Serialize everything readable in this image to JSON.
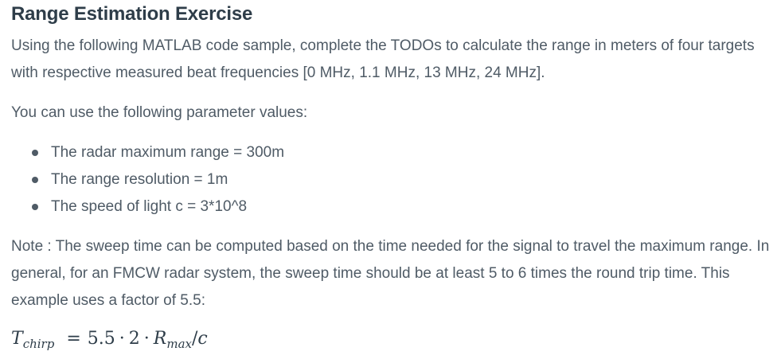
{
  "title": "Range Estimation Exercise",
  "intro": "Using the following MATLAB code sample, complete the TODOs to calculate the range in meters of four targets with respective measured beat frequencies [0 MHz, 1.1 MHz, 13 MHz, 24 MHz].",
  "params_intro": "You can use the following parameter values:",
  "params": [
    "The radar maximum range = 300m",
    "The range resolution = 1m",
    "The speed of light c = 3*10^8"
  ],
  "note": "Note : The sweep time can be computed based on the time needed for the signal to travel the maximum range. In general, for an FMCW radar system, the sweep time should be at least 5 to 6 times the round trip time. This example uses a factor of 5.5:",
  "formula": {
    "lhs_symbol": "T",
    "lhs_subscript": "chirp",
    "equals": "=",
    "factor": "5.5",
    "cdot": "·",
    "two": "2",
    "r_symbol": "R",
    "r_subscript": "max",
    "slash": "/",
    "c_symbol": "c"
  }
}
